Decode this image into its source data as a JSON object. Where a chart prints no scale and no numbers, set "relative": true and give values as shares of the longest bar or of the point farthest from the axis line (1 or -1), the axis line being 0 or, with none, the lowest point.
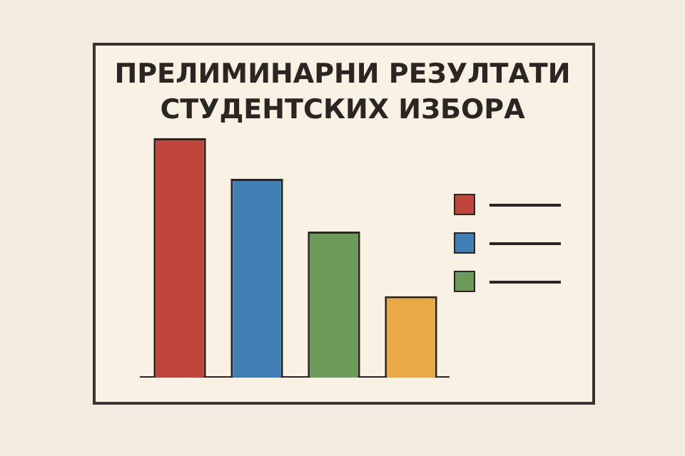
{
  "chart_data": {
    "type": "bar",
    "title": "ПРЕЛИМИНАРНИ РЕЗУЛТАТИ СТУДЕНТСКИХ ИЗБОРА",
    "categories": [
      null,
      null,
      null,
      null
    ],
    "values": [
      1,
      0.83,
      0.61,
      0.34
    ],
    "colors": [
      "#c0453a",
      "#3f7fb6",
      "#6b9a5b",
      "#e9a946"
    ],
    "relative": true,
    "grid": false,
    "legend": false
  }
}
